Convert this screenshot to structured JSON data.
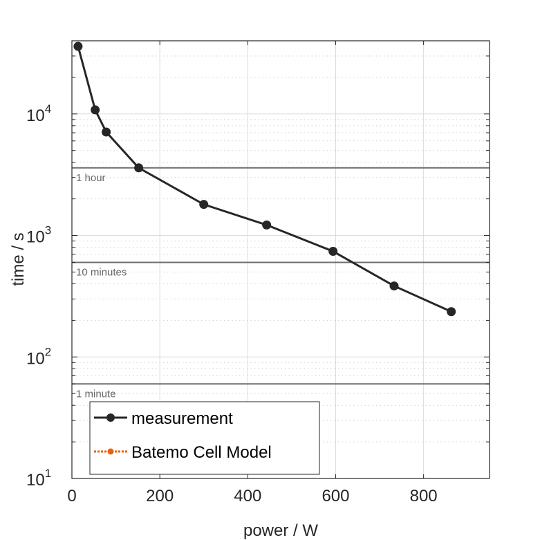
{
  "chart_data": {
    "type": "line",
    "xlabel": "power / W",
    "ylabel": "time / s",
    "xlim": [
      0,
      950
    ],
    "ylim": [
      10,
      40000
    ],
    "yscale": "log",
    "grid": true,
    "x_ticks": [
      0,
      200,
      400,
      600,
      800
    ],
    "y_ticks": [
      {
        "base": "10",
        "exp": "1",
        "value": 10
      },
      {
        "base": "10",
        "exp": "2",
        "value": 100
      },
      {
        "base": "10",
        "exp": "3",
        "value": 1000
      },
      {
        "base": "10",
        "exp": "4",
        "value": 10000
      }
    ],
    "series": [
      {
        "name": "measurement",
        "color": "#262626",
        "marker": "circle",
        "line": "solid",
        "x": [
          14,
          53,
          78,
          152,
          300,
          443,
          594,
          733,
          863
        ],
        "y": [
          36000,
          10800,
          7100,
          3600,
          1800,
          1220,
          740,
          384,
          236
        ]
      },
      {
        "name": "Batemo Cell Model",
        "color": "#e8620f",
        "marker": "circle",
        "line": "dotted",
        "x": [],
        "y": []
      }
    ],
    "reference_lines": [
      {
        "label": "1 hour",
        "value": 3600
      },
      {
        "label": "10 minutes",
        "value": 600
      },
      {
        "label": "1 minute",
        "value": 60
      }
    ],
    "legend_placement": "bottom-left"
  }
}
